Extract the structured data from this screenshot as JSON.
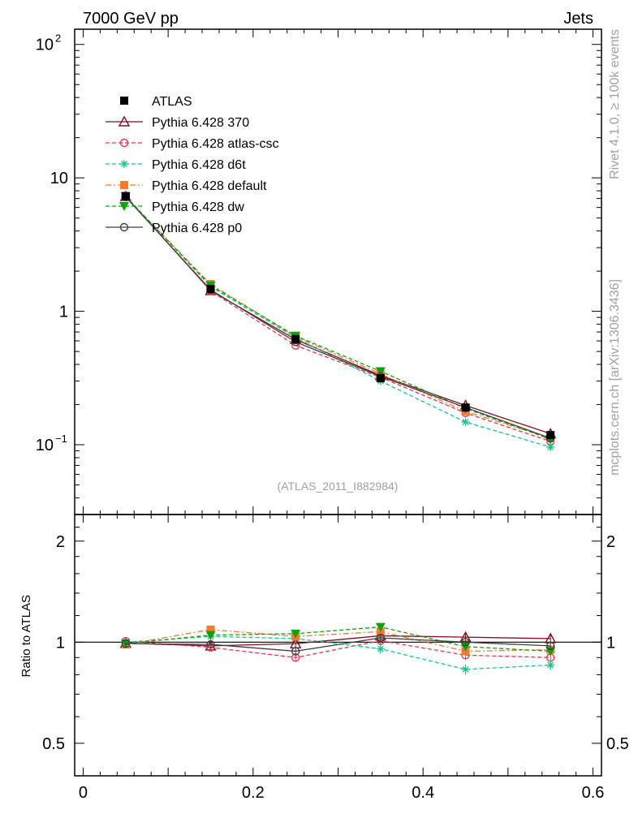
{
  "header": {
    "left": "7000 GeV pp",
    "right": "Jets"
  },
  "side_text": {
    "rivet": "Rivet 4.1.0, ≥ 100k events",
    "mcplots": "mcplots.cern.ch [arXiv:1306.3436]"
  },
  "analysis_label": "(ATLAS_2011_I882984)",
  "ratio_ylabel": "Ratio to ATLAS",
  "legend": [
    "ATLAS",
    "Pythia 6.428 370",
    "Pythia 6.428 atlas-csc",
    "Pythia 6.428 d6t",
    "Pythia 6.428 default",
    "Pythia 6.428 dw",
    "Pythia 6.428 p0"
  ],
  "chart_data": {
    "type": "line",
    "x": [
      0.05,
      0.15,
      0.25,
      0.35,
      0.45,
      0.55
    ],
    "xlim": [
      -0.01,
      0.61
    ],
    "xticks": [
      {
        "v": 0,
        "label": "0"
      },
      {
        "v": 0.2,
        "label": "0.2"
      },
      {
        "v": 0.4,
        "label": "0.4"
      },
      {
        "v": 0.6,
        "label": "0.6"
      }
    ],
    "main": {
      "yscale": "log",
      "ylim": [
        0.03,
        130
      ],
      "yticks": [
        {
          "v": 0.1,
          "base": "10",
          "exp": "−1"
        },
        {
          "v": 1,
          "base": "1",
          "exp": ""
        },
        {
          "v": 10,
          "base": "10",
          "exp": ""
        },
        {
          "v": 100,
          "base": "10",
          "exp": "2"
        }
      ]
    },
    "ratio": {
      "yscale": "log",
      "ylim": [
        0.4,
        2.4
      ],
      "yticks": [
        {
          "v": 0.5,
          "label": "0.5"
        },
        {
          "v": 1,
          "label": "1"
        },
        {
          "v": 2,
          "label": "2"
        }
      ]
    },
    "series": [
      {
        "name": "ATLAS",
        "color": "#000000",
        "marker": "square-filled",
        "dash": "",
        "values": [
          7.3,
          1.47,
          0.62,
          0.315,
          0.19,
          0.118
        ],
        "errors": [
          0.1,
          0.02,
          0.01,
          0.005,
          0.004,
          0.003
        ]
      },
      {
        "name": "Pythia 6.428 370",
        "color": "#7f1023",
        "marker": "triangle-open",
        "dash": "",
        "values": [
          7.25,
          1.43,
          0.615,
          0.33,
          0.197,
          0.121
        ],
        "ratio": [
          0.993,
          0.975,
          0.99,
          1.045,
          1.035,
          1.025
        ],
        "ratio_err": [
          0.012,
          0.02,
          0.03,
          0.03,
          0.035,
          0.035
        ]
      },
      {
        "name": "Pythia 6.428 atlas-csc",
        "color": "#e8364f",
        "marker": "circle-open",
        "dash": "5,3",
        "values": [
          7.35,
          1.42,
          0.555,
          0.32,
          0.173,
          0.106
        ],
        "ratio": [
          1.007,
          0.965,
          0.9,
          1.01,
          0.915,
          0.9
        ],
        "ratio_err": [
          0.012,
          0.02,
          0.025,
          0.03,
          0.03,
          0.03
        ]
      },
      {
        "name": "Pythia 6.428 d6t",
        "color": "#13c68d",
        "marker": "asterisk",
        "dash": "5,3",
        "values": [
          7.3,
          1.53,
          0.635,
          0.3,
          0.148,
          0.096
        ],
        "ratio": [
          1.0,
          1.04,
          1.025,
          0.955,
          0.83,
          0.855
        ],
        "ratio_err": [
          0.012,
          0.02,
          0.03,
          0.03,
          0.03,
          0.03
        ]
      },
      {
        "name": "Pythia 6.428 default",
        "color": "#f47b2b",
        "marker": "square-filled",
        "dash": "7,3,2,3",
        "values": [
          7.2,
          1.6,
          0.645,
          0.34,
          0.178,
          0.112
        ],
        "ratio": [
          0.985,
          1.09,
          1.04,
          1.075,
          0.94,
          0.95
        ],
        "ratio_err": [
          0.012,
          0.02,
          0.03,
          0.03,
          0.03,
          0.03
        ]
      },
      {
        "name": "Pythia 6.428 dw",
        "color": "#12a012",
        "marker": "triangle-down-filled",
        "dash": "5,3",
        "values": [
          7.25,
          1.56,
          0.655,
          0.355,
          0.187,
          0.11
        ],
        "ratio": [
          0.99,
          1.05,
          1.06,
          1.11,
          0.97,
          0.94
        ],
        "ratio_err": [
          0.012,
          0.02,
          0.03,
          0.03,
          0.03,
          0.03
        ]
      },
      {
        "name": "Pythia 6.428 p0",
        "color": "#404040",
        "marker": "circle-open",
        "dash": "",
        "values": [
          7.2,
          1.45,
          0.59,
          0.325,
          0.19,
          0.112
        ],
        "ratio": [
          0.99,
          0.985,
          0.94,
          1.03,
          1.0,
          0.975
        ],
        "ratio_err": [
          0.012,
          0.02,
          0.03,
          0.03,
          0.03,
          0.03
        ]
      }
    ]
  }
}
